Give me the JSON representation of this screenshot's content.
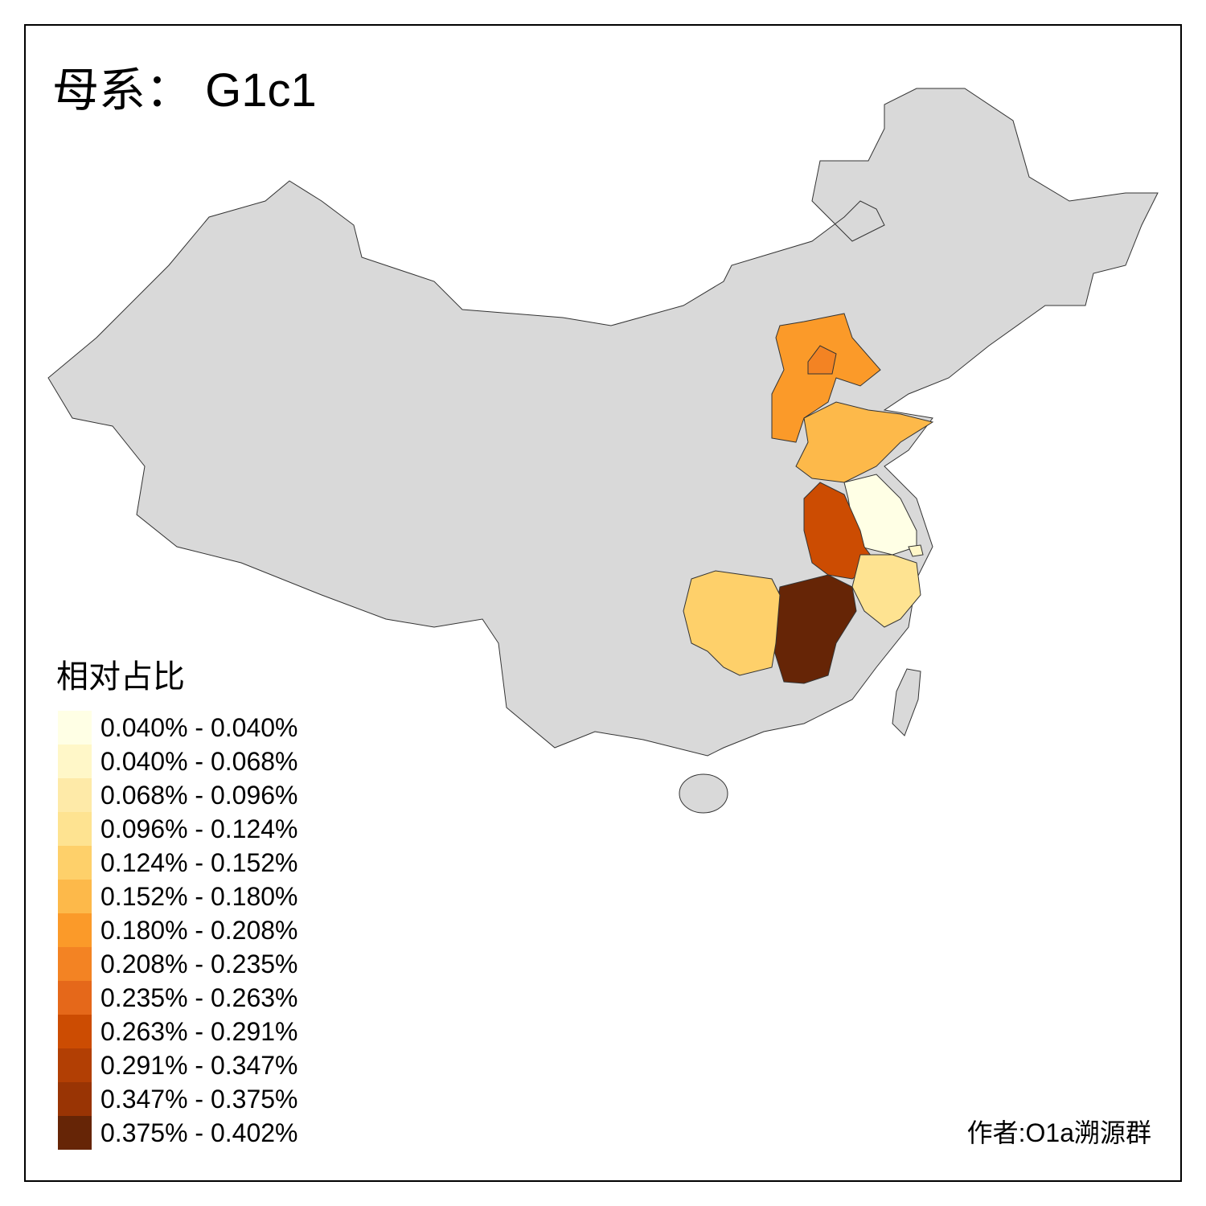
{
  "title": "母系： G1c1",
  "legend": {
    "title": "相对占比",
    "items": [
      {
        "label": "0.040% - 0.040%",
        "color": "#ffffe5"
      },
      {
        "label": "0.040% - 0.068%",
        "color": "#fff7c8"
      },
      {
        "label": "0.068% - 0.096%",
        "color": "#feeaa8"
      },
      {
        "label": "0.096% - 0.124%",
        "color": "#fee391"
      },
      {
        "label": "0.124% - 0.152%",
        "color": "#fed06a"
      },
      {
        "label": "0.152% - 0.180%",
        "color": "#fdb94a"
      },
      {
        "label": "0.180% - 0.208%",
        "color": "#fb9a29"
      },
      {
        "label": "0.208% - 0.235%",
        "color": "#f38323"
      },
      {
        "label": "0.235% - 0.263%",
        "color": "#e5681a"
      },
      {
        "label": "0.263% - 0.291%",
        "color": "#cc4c02"
      },
      {
        "label": "0.291% - 0.347%",
        "color": "#b23f04"
      },
      {
        "label": "0.347% - 0.375%",
        "color": "#993404"
      },
      {
        "label": "0.375% - 0.402%",
        "color": "#662506"
      }
    ]
  },
  "author": "作者:O1a溯源群"
}
